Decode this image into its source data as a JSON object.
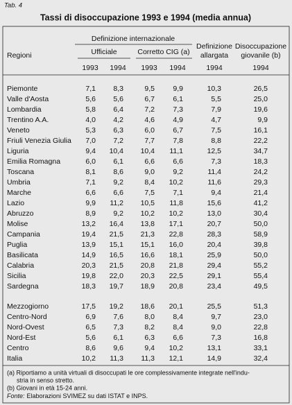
{
  "header": {
    "label": "Tab. 4",
    "title": "Tassi di disoccupazione 1993 e 1994 (media annua)"
  },
  "table": {
    "columns": {
      "region": "Regioni",
      "international": "Definizione internazionale",
      "official": "Ufficiale",
      "corrected": "Corretto CIG (a)",
      "extended": [
        "Definizione",
        "allargata"
      ],
      "youth": [
        "Disoccupazione",
        "giovanile (b)"
      ],
      "years": [
        "1993",
        "1994",
        "1993",
        "1994",
        "1994",
        "1994"
      ]
    },
    "groups": [
      [
        [
          "Piemonte",
          "7,1",
          "8,3",
          "9,5",
          "9,9",
          "10,3",
          "26,5"
        ],
        [
          "Valle d'Aosta",
          "5,6",
          "5,6",
          "6,7",
          "6,1",
          "5,5",
          "25,0"
        ],
        [
          "Lombardia",
          "5,8",
          "6,4",
          "7,2",
          "7,3",
          "7,9",
          "19,6"
        ],
        [
          "Trentino A.A.",
          "4,0",
          "4,2",
          "4,6",
          "4,9",
          "4,7",
          "9,9"
        ],
        [
          "Veneto",
          "5,3",
          "6,3",
          "6,0",
          "6,7",
          "7,5",
          "16,1"
        ],
        [
          "Friuli Venezia Giulia",
          "7,0",
          "7,2",
          "7,7",
          "7,8",
          "8,8",
          "22,2"
        ],
        [
          "Liguria",
          "9,4",
          "10,4",
          "10,4",
          "11,1",
          "12,5",
          "34,7"
        ],
        [
          "Emilia Romagna",
          "6,0",
          "6,1",
          "6,6",
          "6,6",
          "7,3",
          "18,3"
        ],
        [
          "Toscana",
          "8,1",
          "8,6",
          "9,0",
          "9,2",
          "11,4",
          "24,2"
        ],
        [
          "Umbria",
          "7,1",
          "9,2",
          "8,4",
          "10,2",
          "11,6",
          "29,3"
        ],
        [
          "Marche",
          "6,6",
          "6,6",
          "7,5",
          "7,1",
          "9,4",
          "21,4"
        ],
        [
          "Lazio",
          "9,9",
          "11,2",
          "10,5",
          "11,8",
          "15,6",
          "41,2"
        ],
        [
          "Abruzzo",
          "8,9",
          "9,2",
          "10,2",
          "10,2",
          "13,0",
          "30,4"
        ],
        [
          "Molise",
          "13,2",
          "16,4",
          "13,8",
          "17,1",
          "20,7",
          "50,0"
        ],
        [
          "Campania",
          "19,4",
          "21,5",
          "21,3",
          "22,8",
          "28,3",
          "58,9"
        ],
        [
          "Puglia",
          "13,9",
          "15,1",
          "15,1",
          "16,0",
          "20,4",
          "39,8"
        ],
        [
          "Basilicata",
          "14,9",
          "16,5",
          "16,6",
          "18,1",
          "25,9",
          "50,0"
        ],
        [
          "Calabria",
          "20,3",
          "21,5",
          "20,8",
          "21,8",
          "29,4",
          "55,2"
        ],
        [
          "Sicilia",
          "19,8",
          "22,0",
          "20,3",
          "22,5",
          "29,1",
          "55,4"
        ],
        [
          "Sardegna",
          "18,3",
          "19,7",
          "18,9",
          "20,8",
          "23,4",
          "49,5"
        ]
      ],
      [
        [
          "Mezzogiorno",
          "17,5",
          "19,2",
          "18,6",
          "20,1",
          "25,5",
          "51,3"
        ],
        [
          "Centro-Nord",
          "6,9",
          "7,6",
          "8,0",
          "8,4",
          "9,7",
          "23,0"
        ],
        [
          "Nord-Ovest",
          "6,5",
          "7,3",
          "8,2",
          "8,4",
          "9,0",
          "22,8"
        ],
        [
          "Nord-Est",
          "5,6",
          "6,1",
          "6,3",
          "6,6",
          "7,3",
          "16,8"
        ],
        [
          "Centro",
          "8,6",
          "9,6",
          "9,4",
          "10,2",
          "13,1",
          "33,1"
        ],
        [
          "Italia",
          "10,2",
          "11,3",
          "11,3",
          "12,1",
          "14,9",
          "32,4"
        ]
      ]
    ]
  },
  "notes": {
    "a": [
      "(a) Riportiamo a unità virtuali di disoccupati le ore complessivamente integrate nell'indu-",
      "stria in senso stretto."
    ],
    "b": "(b) Giovani in età 15-24 anni.",
    "source_label": "Fonte:",
    "source": "Elaborazioni SVIMEZ su dati ISTAT e INPS."
  }
}
